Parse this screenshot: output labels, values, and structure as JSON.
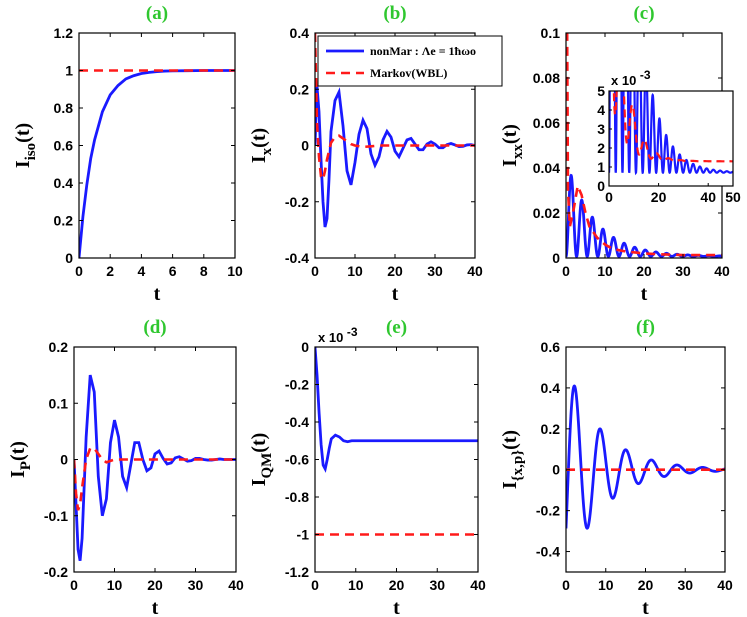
{
  "chart_data": [
    {
      "id": "a",
      "type": "line",
      "title": "(a)",
      "xlabel": "t",
      "ylabel": "I_iso(t)",
      "xlim": [
        0,
        10
      ],
      "ylim": [
        0,
        1.2
      ],
      "xticks": [
        0,
        2,
        4,
        6,
        8,
        10
      ],
      "yticks": [
        0,
        0.2,
        0.4,
        0.6,
        0.8,
        1,
        1.2
      ],
      "tick_labels_y": [
        "0",
        "0.2",
        "0.4",
        "0.6",
        "0.8",
        "1",
        "1.2"
      ],
      "series": [
        {
          "style": "solid",
          "color": "#1a1aff",
          "x": [
            0,
            0.25,
            0.5,
            0.75,
            1,
            1.5,
            2,
            2.5,
            3,
            3.5,
            4,
            4.5,
            5,
            5.5,
            6,
            7,
            8,
            9,
            10
          ],
          "y": [
            0,
            0.22,
            0.39,
            0.53,
            0.63,
            0.78,
            0.87,
            0.92,
            0.955,
            0.972,
            0.984,
            0.99,
            0.994,
            0.997,
            0.998,
            0.999,
            1,
            1,
            1
          ]
        },
        {
          "style": "dashed",
          "color": "#ff1a1a",
          "x": [
            0,
            10
          ],
          "y": [
            1,
            1
          ]
        }
      ]
    },
    {
      "id": "b",
      "type": "line",
      "title": "(b)",
      "xlabel": "t",
      "ylabel": "I_x(t)",
      "xlim": [
        0,
        40
      ],
      "ylim": [
        -0.4,
        0.4
      ],
      "xticks": [
        0,
        10,
        20,
        30,
        40
      ],
      "yticks": [
        -0.4,
        -0.2,
        0,
        0.2,
        0.4
      ],
      "tick_labels_y": [
        "-0.4",
        "-0.2",
        "0",
        "0.2",
        "0.4"
      ],
      "legend": {
        "entries": [
          "nonMar : Λe = 1ħωo",
          "Markov(WBL)"
        ],
        "position": "top-right"
      },
      "series": [
        {
          "style": "solid",
          "color": "#1a1aff",
          "x": [
            0,
            0.5,
            1,
            1.5,
            2,
            2.5,
            3,
            3.5,
            4,
            5,
            6,
            7,
            8,
            9,
            10,
            11,
            12,
            13,
            14,
            15,
            16,
            17,
            18,
            19,
            20,
            21,
            22,
            23,
            24,
            25,
            26,
            27,
            28,
            29,
            30,
            31,
            32,
            33,
            34,
            35,
            36,
            37,
            38,
            39,
            40
          ],
          "y": [
            0,
            0.21,
            0.12,
            -0.05,
            -0.2,
            -0.29,
            -0.26,
            -0.12,
            0.05,
            0.16,
            0.19,
            0.07,
            -0.09,
            -0.14,
            -0.06,
            0.04,
            0.09,
            0.06,
            -0.03,
            -0.07,
            -0.04,
            0.02,
            0.05,
            0.03,
            -0.02,
            -0.04,
            -0.01,
            0.02,
            0.025,
            0.005,
            -0.015,
            -0.015,
            0.005,
            0.013,
            0.005,
            -0.008,
            -0.008,
            0.003,
            0.007,
            0.002,
            -0.004,
            -0.003,
            0.002,
            0.003,
            0
          ]
        },
        {
          "style": "dashed",
          "color": "#ff1a1a",
          "x": [
            0,
            0.5,
            1,
            1.5,
            2,
            2.5,
            3,
            4,
            5,
            6,
            7,
            8,
            9,
            10,
            12,
            14,
            16,
            20,
            25,
            30,
            35,
            40
          ],
          "y": [
            0.4,
            0.08,
            -0.04,
            -0.11,
            -0.12,
            -0.09,
            -0.05,
            0.01,
            0.03,
            0.035,
            0.025,
            0.015,
            0.005,
            0,
            -0.005,
            -0.003,
            0,
            0,
            0,
            0,
            0,
            0
          ]
        }
      ]
    },
    {
      "id": "c",
      "type": "line",
      "title": "(c)",
      "xlabel": "t",
      "ylabel": "I_xx(t)",
      "xlim": [
        0,
        40
      ],
      "ylim": [
        0,
        0.1
      ],
      "xticks": [
        0,
        10,
        20,
        30,
        40
      ],
      "yticks": [
        0,
        0.02,
        0.04,
        0.06,
        0.08,
        0.1
      ],
      "tick_labels_y": [
        "0",
        "0.02",
        "0.04",
        "0.06",
        "0.08",
        "0.1"
      ],
      "inset": {
        "xlim": [
          0,
          50
        ],
        "ylim": [
          0,
          5
        ],
        "xticks": [
          0,
          20,
          40,
          50
        ],
        "yticks": [
          0,
          1,
          2,
          3,
          4,
          5
        ],
        "tick_labels_x": [
          "0",
          "20",
          "40",
          "50"
        ],
        "tick_labels_y": [
          "0",
          "1",
          "2",
          "3",
          "4",
          "5"
        ],
        "scale": "x 10",
        "scale_exp": "-3"
      },
      "series": [
        {
          "style": "solid",
          "color": "#1a1aff",
          "envelope": {
            "amp": 0.043,
            "tau": 7.5,
            "freq": 0.16,
            "offset": 0.0007
          }
        },
        {
          "style": "dashed",
          "color": "#ff1a1a",
          "x": [
            0,
            0.3,
            0.5,
            1,
            2,
            3,
            4,
            5,
            6,
            8,
            10,
            12,
            15,
            20,
            25,
            30,
            40
          ],
          "y": [
            0.1,
            0.1,
            0.03,
            0.014,
            0.022,
            0.032,
            0.028,
            0.02,
            0.014,
            0.009,
            0.006,
            0.004,
            0.003,
            0.002,
            0.0016,
            0.0013,
            0.0013
          ]
        }
      ]
    },
    {
      "id": "d",
      "type": "line",
      "title": "(d)",
      "xlabel": "t",
      "ylabel": "I_P(t)",
      "xlim": [
        0,
        40
      ],
      "ylim": [
        -0.2,
        0.2
      ],
      "xticks": [
        0,
        10,
        20,
        30,
        40
      ],
      "yticks": [
        -0.2,
        -0.1,
        0,
        0.1,
        0.2
      ],
      "tick_labels_y": [
        "-0.2",
        "-0.1",
        "0",
        "0.1",
        "0.2"
      ],
      "series": [
        {
          "style": "solid",
          "color": "#1a1aff",
          "x": [
            0,
            0.5,
            1,
            1.5,
            2,
            3,
            4,
            5,
            6,
            7,
            8,
            9,
            10,
            11,
            12,
            13,
            14,
            15,
            16,
            17,
            18,
            19,
            20,
            21,
            22,
            23,
            24,
            25,
            26,
            27,
            28,
            29,
            30,
            31,
            32,
            33,
            34,
            35,
            36,
            37,
            38,
            39,
            40
          ],
          "y": [
            0,
            -0.08,
            -0.16,
            -0.18,
            -0.14,
            0.04,
            0.15,
            0.12,
            -0.03,
            -0.1,
            -0.07,
            0.03,
            0.07,
            0.04,
            -0.03,
            -0.05,
            -0.01,
            0.03,
            0.03,
            0,
            -0.02,
            -0.015,
            0.01,
            0.015,
            0.002,
            -0.008,
            -0.006,
            0.003,
            0.005,
            0.001,
            -0.003,
            -0.002,
            0.002,
            0.002,
            0,
            -0.001,
            -0.001,
            0,
            0.001,
            0,
            0,
            0,
            0
          ]
        },
        {
          "style": "dashed",
          "color": "#ff1a1a",
          "x": [
            0,
            0.5,
            1,
            1.5,
            2,
            3,
            4,
            5,
            6,
            7,
            8,
            10,
            12,
            15,
            20,
            30,
            40
          ],
          "y": [
            0,
            -0.06,
            -0.09,
            -0.08,
            -0.05,
            0,
            0.02,
            0.02,
            0.01,
            0,
            -0.005,
            0,
            0,
            0,
            0,
            0,
            0
          ]
        }
      ]
    },
    {
      "id": "e",
      "type": "line",
      "title": "(e)",
      "xlabel": "t",
      "ylabel": "I_QM(t)",
      "scale": "x 10",
      "scale_exp": "-3",
      "xlim": [
        0,
        40
      ],
      "ylim": [
        -1.2,
        0
      ],
      "xticks": [
        0,
        10,
        20,
        30,
        40
      ],
      "yticks": [
        -1.2,
        -1,
        -0.8,
        -0.6,
        -0.4,
        -0.2,
        0
      ],
      "tick_labels_y": [
        "-1.2",
        "-1",
        "-0.8",
        "-0.6",
        "-0.4",
        "-0.2",
        "0"
      ],
      "series": [
        {
          "style": "solid",
          "color": "#1a1aff",
          "x": [
            0,
            0.5,
            1,
            1.5,
            2,
            2.5,
            3,
            3.5,
            4,
            5,
            6,
            7,
            8,
            9,
            10,
            12,
            15,
            20,
            30,
            40
          ],
          "y": [
            0,
            -0.15,
            -0.35,
            -0.52,
            -0.63,
            -0.65,
            -0.6,
            -0.54,
            -0.49,
            -0.47,
            -0.48,
            -0.5,
            -0.505,
            -0.5,
            -0.5,
            -0.5,
            -0.5,
            -0.5,
            -0.5,
            -0.5
          ]
        },
        {
          "style": "dashed",
          "color": "#ff1a1a",
          "x": [
            0,
            40
          ],
          "y": [
            -1,
            -1
          ]
        }
      ]
    },
    {
      "id": "f",
      "type": "line",
      "title": "(f)",
      "xlabel": "t",
      "ylabel": "I_{x,p}(t)",
      "xlim": [
        0,
        40
      ],
      "ylim": [
        -0.5,
        0.6
      ],
      "xticks": [
        0,
        10,
        20,
        30,
        40
      ],
      "yticks": [
        -0.4,
        -0.2,
        0,
        0.2,
        0.4,
        0.6
      ],
      "tick_labels_y": [
        "-0.4",
        "-0.2",
        "0",
        "0.2",
        "0.4",
        "0.6"
      ],
      "series": [
        {
          "style": "solid",
          "color": "#1a1aff",
          "osc": {
            "amp": 0.52,
            "tau": 9,
            "freq": 0.31,
            "shift": 0.6
          }
        },
        {
          "style": "dashed",
          "color": "#ff1a1a",
          "x": [
            0,
            40
          ],
          "y": [
            0,
            0
          ]
        }
      ]
    }
  ],
  "labels": {
    "t": "t",
    "I": "I",
    "sub_a": "iso",
    "sub_b": "x",
    "sub_c": "xx",
    "sub_d": "P",
    "sub_e": "QM",
    "sub_f": "{x,p}",
    "arg": "(t)"
  }
}
